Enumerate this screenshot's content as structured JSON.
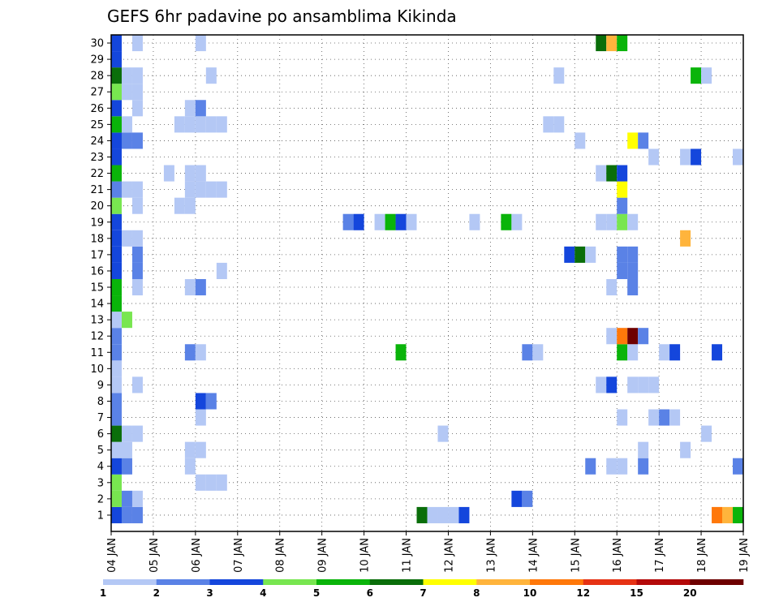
{
  "chart_data": {
    "type": "heatmap",
    "title": "GEFS 6hr padavine po ansamblima Kikinda",
    "xlabel": "",
    "ylabel": "",
    "y_tick_labels": [
      "1",
      "2",
      "3",
      "4",
      "5",
      "6",
      "7",
      "8",
      "9",
      "10",
      "11",
      "12",
      "13",
      "14",
      "15",
      "16",
      "17",
      "18",
      "19",
      "20",
      "21",
      "22",
      "23",
      "24",
      "25",
      "26",
      "27",
      "28",
      "29",
      "30"
    ],
    "x_tick_labels": [
      "04 JAN",
      "05 JAN",
      "06 JAN",
      "07 JAN",
      "08 JAN",
      "09 JAN",
      "10 JAN",
      "11 JAN",
      "12 JAN",
      "13 JAN",
      "14 JAN",
      "15 JAN",
      "16 JAN",
      "17 JAN",
      "18 JAN",
      "19 JAN"
    ],
    "x_step_hours": 6,
    "grid": true,
    "legend_position": "bottom",
    "colorbar": {
      "levels": [
        1,
        2,
        3,
        4,
        5,
        6,
        7,
        8,
        10,
        12,
        15,
        20
      ],
      "colors": [
        "#b4c8f5",
        "#5a82e6",
        "#1446dc",
        "#78e650",
        "#0ab40a",
        "#0a6e0a",
        "#ffff00",
        "#ffb43c",
        "#ff780a",
        "#e63214",
        "#b40a0a",
        "#6e0000"
      ]
    },
    "cells": [
      [
        1,
        1,
        3
      ],
      [
        1,
        2,
        2
      ],
      [
        1,
        3,
        2
      ],
      [
        1,
        32,
        1
      ],
      [
        1,
        33,
        1
      ],
      [
        1,
        34,
        3
      ],
      [
        1,
        30,
        6
      ],
      [
        1,
        31,
        1
      ],
      [
        1,
        60,
        5
      ],
      [
        1,
        59,
        8
      ],
      [
        1,
        58,
        10
      ],
      [
        2,
        1,
        4
      ],
      [
        2,
        2,
        2
      ],
      [
        2,
        3,
        1
      ],
      [
        2,
        39,
        3
      ],
      [
        2,
        40,
        2
      ],
      [
        3,
        1,
        4
      ],
      [
        3,
        9,
        1
      ],
      [
        3,
        10,
        1
      ],
      [
        3,
        11,
        1
      ],
      [
        4,
        1,
        3
      ],
      [
        4,
        2,
        2
      ],
      [
        4,
        8,
        1
      ],
      [
        4,
        46,
        2
      ],
      [
        4,
        48,
        1
      ],
      [
        4,
        49,
        1
      ],
      [
        4,
        51,
        2
      ],
      [
        4,
        60,
        2
      ],
      [
        5,
        1,
        1
      ],
      [
        5,
        2,
        1
      ],
      [
        5,
        8,
        1
      ],
      [
        5,
        9,
        1
      ],
      [
        5,
        51,
        1
      ],
      [
        5,
        55,
        1
      ],
      [
        6,
        1,
        6
      ],
      [
        6,
        2,
        1
      ],
      [
        6,
        3,
        1
      ],
      [
        6,
        32,
        1
      ],
      [
        6,
        57,
        1
      ],
      [
        7,
        1,
        2
      ],
      [
        7,
        9,
        1
      ],
      [
        7,
        49,
        1
      ],
      [
        7,
        52,
        1
      ],
      [
        7,
        53,
        2
      ],
      [
        7,
        54,
        1
      ],
      [
        8,
        1,
        2
      ],
      [
        8,
        9,
        3
      ],
      [
        8,
        10,
        2
      ],
      [
        9,
        1,
        1
      ],
      [
        9,
        3,
        1
      ],
      [
        9,
        47,
        1
      ],
      [
        9,
        48,
        3
      ],
      [
        9,
        50,
        1
      ],
      [
        9,
        51,
        1
      ],
      [
        9,
        52,
        1
      ],
      [
        10,
        1,
        1
      ],
      [
        11,
        1,
        2
      ],
      [
        11,
        8,
        2
      ],
      [
        11,
        9,
        1
      ],
      [
        11,
        28,
        5
      ],
      [
        11,
        40,
        2
      ],
      [
        11,
        41,
        1
      ],
      [
        11,
        49,
        5
      ],
      [
        11,
        50,
        1
      ],
      [
        11,
        53,
        1
      ],
      [
        11,
        54,
        3
      ],
      [
        11,
        58,
        3
      ],
      [
        12,
        1,
        2
      ],
      [
        12,
        48,
        1
      ],
      [
        12,
        49,
        10
      ],
      [
        12,
        50,
        20
      ],
      [
        12,
        51,
        2
      ],
      [
        13,
        1,
        1
      ],
      [
        13,
        2,
        4
      ],
      [
        14,
        1,
        5
      ],
      [
        15,
        1,
        5
      ],
      [
        15,
        3,
        1
      ],
      [
        15,
        8,
        1
      ],
      [
        15,
        9,
        2
      ],
      [
        15,
        48,
        1
      ],
      [
        15,
        50,
        2
      ],
      [
        16,
        1,
        3
      ],
      [
        16,
        3,
        2
      ],
      [
        16,
        11,
        1
      ],
      [
        16,
        49,
        2
      ],
      [
        16,
        50,
        2
      ],
      [
        17,
        1,
        3
      ],
      [
        17,
        3,
        2
      ],
      [
        17,
        44,
        3
      ],
      [
        17,
        45,
        6
      ],
      [
        17,
        46,
        1
      ],
      [
        17,
        49,
        2
      ],
      [
        17,
        50,
        2
      ],
      [
        18,
        1,
        3
      ],
      [
        18,
        2,
        1
      ],
      [
        18,
        3,
        1
      ],
      [
        18,
        55,
        8
      ],
      [
        19,
        1,
        3
      ],
      [
        19,
        23,
        2
      ],
      [
        19,
        24,
        3
      ],
      [
        19,
        26,
        1
      ],
      [
        19,
        27,
        5
      ],
      [
        19,
        28,
        3
      ],
      [
        19,
        29,
        1
      ],
      [
        19,
        35,
        1
      ],
      [
        19,
        38,
        5
      ],
      [
        19,
        39,
        1
      ],
      [
        19,
        47,
        1
      ],
      [
        19,
        48,
        1
      ],
      [
        19,
        49,
        4
      ],
      [
        19,
        50,
        1
      ],
      [
        20,
        1,
        4
      ],
      [
        20,
        3,
        1
      ],
      [
        20,
        7,
        1
      ],
      [
        20,
        8,
        1
      ],
      [
        20,
        49,
        2
      ],
      [
        21,
        1,
        2
      ],
      [
        21,
        2,
        1
      ],
      [
        21,
        3,
        1
      ],
      [
        21,
        8,
        1
      ],
      [
        21,
        9,
        1
      ],
      [
        21,
        10,
        1
      ],
      [
        21,
        11,
        1
      ],
      [
        21,
        49,
        7
      ],
      [
        22,
        1,
        5
      ],
      [
        22,
        6,
        1
      ],
      [
        22,
        8,
        1
      ],
      [
        22,
        9,
        1
      ],
      [
        22,
        47,
        1
      ],
      [
        22,
        48,
        6
      ],
      [
        22,
        49,
        3
      ],
      [
        23,
        1,
        3
      ],
      [
        23,
        52,
        1
      ],
      [
        23,
        55,
        1
      ],
      [
        23,
        56,
        3
      ],
      [
        23,
        60,
        1
      ],
      [
        24,
        1,
        3
      ],
      [
        24,
        2,
        2
      ],
      [
        24,
        3,
        2
      ],
      [
        24,
        45,
        1
      ],
      [
        24,
        50,
        7
      ],
      [
        24,
        51,
        2
      ],
      [
        25,
        1,
        5
      ],
      [
        25,
        2,
        1
      ],
      [
        25,
        7,
        1
      ],
      [
        25,
        8,
        1
      ],
      [
        25,
        9,
        1
      ],
      [
        25,
        10,
        1
      ],
      [
        25,
        11,
        1
      ],
      [
        25,
        42,
        1
      ],
      [
        25,
        43,
        1
      ],
      [
        26,
        1,
        3
      ],
      [
        26,
        3,
        1
      ],
      [
        26,
        8,
        1
      ],
      [
        26,
        9,
        2
      ],
      [
        27,
        1,
        4
      ],
      [
        27,
        2,
        1
      ],
      [
        27,
        3,
        1
      ],
      [
        28,
        1,
        6
      ],
      [
        28,
        2,
        1
      ],
      [
        28,
        3,
        1
      ],
      [
        28,
        10,
        1
      ],
      [
        28,
        43,
        1
      ],
      [
        28,
        56,
        5
      ],
      [
        28,
        57,
        1
      ],
      [
        29,
        1,
        3
      ],
      [
        30,
        1,
        3
      ],
      [
        30,
        3,
        1
      ],
      [
        30,
        9,
        1
      ],
      [
        30,
        47,
        6
      ],
      [
        30,
        48,
        8
      ],
      [
        30,
        49,
        5
      ]
    ]
  }
}
